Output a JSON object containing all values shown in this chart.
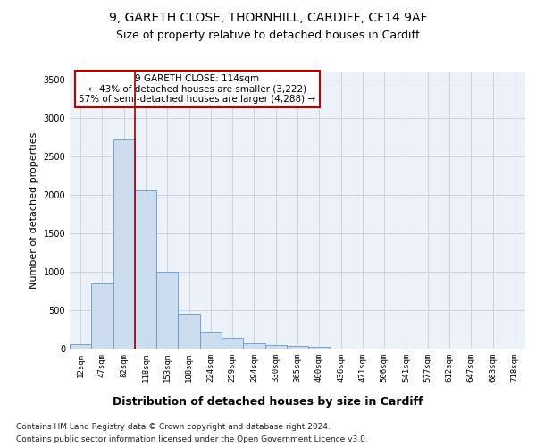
{
  "title_line1": "9, GARETH CLOSE, THORNHILL, CARDIFF, CF14 9AF",
  "title_line2": "Size of property relative to detached houses in Cardiff",
  "xlabel": "Distribution of detached houses by size in Cardiff",
  "ylabel": "Number of detached properties",
  "annotation_line1": "9 GARETH CLOSE: 114sqm",
  "annotation_line2": "← 43% of detached houses are smaller (3,222)",
  "annotation_line3": "57% of semi-detached houses are larger (4,288) →",
  "footer_line1": "Contains HM Land Registry data © Crown copyright and database right 2024.",
  "footer_line2": "Contains public sector information licensed under the Open Government Licence v3.0.",
  "bar_values": [
    55,
    850,
    2720,
    2060,
    1000,
    450,
    225,
    140,
    65,
    50,
    30,
    20,
    5,
    0,
    0,
    0,
    0,
    0,
    0,
    0,
    0
  ],
  "bar_labels": [
    "12sqm",
    "47sqm",
    "82sqm",
    "118sqm",
    "153sqm",
    "188sqm",
    "224sqm",
    "259sqm",
    "294sqm",
    "330sqm",
    "365sqm",
    "400sqm",
    "436sqm",
    "471sqm",
    "506sqm",
    "541sqm",
    "577sqm",
    "612sqm",
    "647sqm",
    "683sqm",
    "718sqm"
  ],
  "n_bars": 21,
  "bar_color": "#ccddf0",
  "bar_edge_color": "#6699cc",
  "grid_color": "#c8d4e8",
  "bg_color": "#edf2f9",
  "vline_color": "#990000",
  "ylim": [
    0,
    3600
  ],
  "yticks": [
    0,
    500,
    1000,
    1500,
    2000,
    2500,
    3000,
    3500
  ],
  "annotation_box_color": "#bb0000",
  "title1_fontsize": 10,
  "title2_fontsize": 9,
  "ylabel_fontsize": 8,
  "xlabel_fontsize": 9,
  "footer_fontsize": 6.5,
  "annotation_fontsize": 7.5,
  "tick_fontsize": 6.5
}
